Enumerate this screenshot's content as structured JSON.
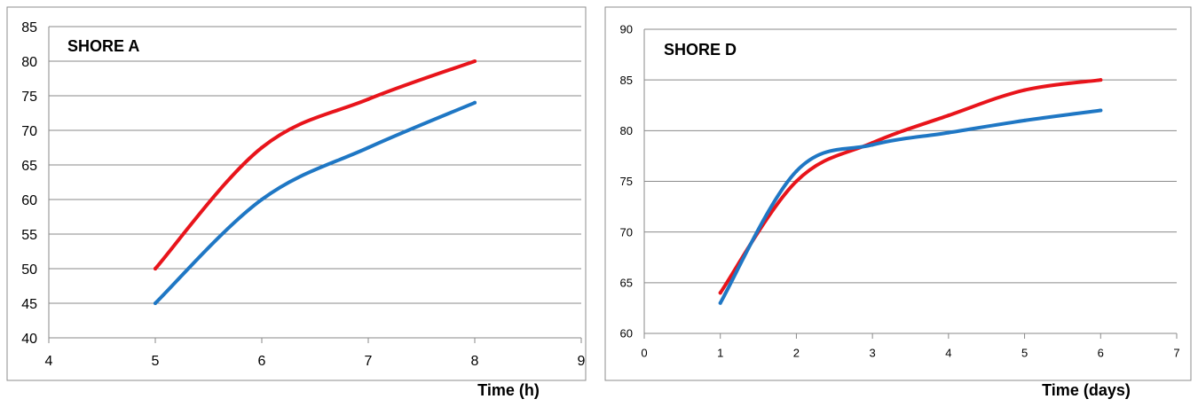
{
  "chart_data": [
    {
      "type": "line",
      "title": "SHORE A",
      "xlabel": "Time (h)",
      "ylabel": "",
      "xlim": [
        4,
        9
      ],
      "ylim": [
        40,
        85
      ],
      "xticks": [
        "4",
        "5",
        "6",
        "7",
        "8",
        "9"
      ],
      "yticks": [
        "40",
        "45",
        "50",
        "55",
        "60",
        "65",
        "70",
        "75",
        "80",
        "85"
      ],
      "grid": "horizontal",
      "series": [
        {
          "color": "#e8141b",
          "x": [
            5,
            6,
            7,
            8
          ],
          "values": [
            50,
            67.5,
            74.5,
            80
          ]
        },
        {
          "color": "#1f77c4",
          "x": [
            5,
            6,
            7,
            8
          ],
          "values": [
            45,
            60,
            67.5,
            74
          ]
        }
      ]
    },
    {
      "type": "line",
      "title": "SHORE D",
      "xlabel": "Time (days)",
      "ylabel": "",
      "xlim": [
        0,
        7
      ],
      "ylim": [
        60,
        90
      ],
      "xticks": [
        "0",
        "1",
        "2",
        "3",
        "4",
        "5",
        "6",
        "7"
      ],
      "yticks": [
        "60",
        "65",
        "70",
        "75",
        "80",
        "85",
        "90"
      ],
      "grid": "horizontal",
      "series": [
        {
          "color": "#e8141b",
          "x": [
            1,
            2,
            3,
            4,
            5,
            6
          ],
          "values": [
            64,
            75,
            78.8,
            81.5,
            84,
            85
          ]
        },
        {
          "color": "#1f77c4",
          "x": [
            1,
            2,
            3,
            4,
            5,
            6
          ],
          "values": [
            63,
            76,
            78.6,
            79.8,
            81,
            82
          ]
        }
      ]
    }
  ]
}
